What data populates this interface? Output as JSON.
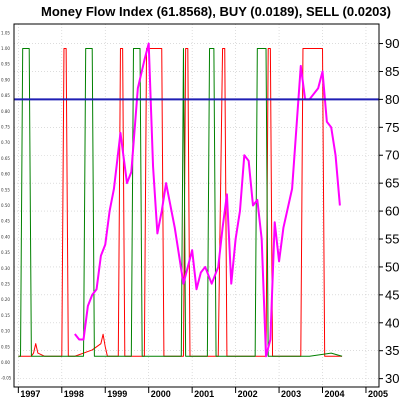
{
  "chart_data": {
    "type": "line",
    "title": "Money Flow Index (61.8568), BUY (0.0189), SELL (0.0203)",
    "x_ticks": [
      "1997",
      "1998",
      "1999",
      "2000",
      "2001",
      "2002",
      "2003",
      "2004",
      "2005"
    ],
    "xlim": [
      1996.9,
      2005.3
    ],
    "y_right": {
      "ticks": [
        30,
        35,
        40,
        45,
        50,
        55,
        60,
        65,
        70,
        75,
        80,
        85,
        90
      ],
      "ylim": [
        28.5,
        93.5
      ]
    },
    "y_left": {
      "ticks": [
        "-0.05",
        "0.00",
        "0.05",
        "0.10",
        "0.15",
        "0.20",
        "0.25",
        "0.30",
        "0.35",
        "0.40",
        "0.45",
        "0.50",
        "0.55",
        "0.60",
        "0.65",
        "0.70",
        "0.75",
        "0.80",
        "0.85",
        "0.90",
        "0.95",
        "1.00",
        "1.05"
      ],
      "ylim": [
        -0.078,
        1.078
      ]
    },
    "reference_line": {
      "value": 80,
      "axis": "right",
      "color": "#1f1fb4"
    },
    "series": [
      {
        "axis": "right",
        "color": "#ff00ff",
        "x": [
          1998.3,
          1998.4,
          1998.5,
          1998.6,
          1998.7,
          1998.8,
          1998.9,
          1999.0,
          1999.1,
          1999.2,
          1999.35,
          1999.5,
          1999.6,
          1999.75,
          1999.9,
          2000.0,
          2000.1,
          2000.2,
          2000.3,
          2000.4,
          2000.6,
          2000.8,
          2001.0,
          2001.1,
          2001.2,
          2001.3,
          2001.45,
          2001.6,
          2001.7,
          2001.8,
          2001.9,
          2002.0,
          2002.1,
          2002.2,
          2002.3,
          2002.4,
          2002.5,
          2002.6,
          2002.7,
          2002.8,
          2002.9,
          2003.0,
          2003.1,
          2003.3,
          2003.5,
          2003.6,
          2003.7,
          2003.8,
          2003.9,
          2004.0,
          2004.1,
          2004.2,
          2004.3,
          2004.4
        ],
        "values": [
          38,
          37,
          37,
          43,
          45,
          46,
          52,
          54,
          60,
          64,
          74,
          65,
          67,
          82,
          87,
          90,
          68,
          56,
          60,
          65,
          57,
          47,
          53,
          46,
          49,
          50,
          47,
          50,
          57,
          63,
          47,
          55,
          60,
          70,
          69,
          61,
          62,
          55,
          34,
          37,
          58,
          51,
          57,
          64,
          86,
          80,
          80,
          81,
          82,
          85,
          76,
          75,
          70,
          61
        ]
      },
      {
        "axis": "left",
        "color": "#ff0000",
        "x": [
          1997.0,
          1997.3,
          1997.35,
          1997.4,
          1997.45,
          1997.6,
          1998.0,
          1998.05,
          1998.1,
          1998.15,
          1998.3,
          1998.7,
          1998.9,
          1998.95,
          1999.0,
          1999.05,
          1999.3,
          1999.35,
          1999.4,
          1999.45,
          1999.6,
          1999.9,
          1999.95,
          2000.0,
          2000.3,
          2000.35,
          2000.8,
          2000.85,
          2000.9,
          2000.95,
          2001.2,
          2001.6,
          2001.7,
          2001.75,
          2001.8,
          2001.85,
          2002.0,
          2002.7,
          2002.75,
          2002.8,
          2002.85,
          2003.2,
          2003.5,
          2003.55,
          2003.95,
          2004.0,
          2004.05,
          2004.1,
          2004.15,
          2004.45
        ],
        "values": [
          0.02,
          0.02,
          0.03,
          0.06,
          0.03,
          0.02,
          0.02,
          1.0,
          1.0,
          0.02,
          0.02,
          0.04,
          0.06,
          0.09,
          0.05,
          0.02,
          0.02,
          1.0,
          1.0,
          0.02,
          0.02,
          0.02,
          1.0,
          1.0,
          1.0,
          0.02,
          0.02,
          1.0,
          1.0,
          0.02,
          0.02,
          0.02,
          1.0,
          1.0,
          0.02,
          0.02,
          0.02,
          0.02,
          1.0,
          1.0,
          0.02,
          0.02,
          0.02,
          1.0,
          1.0,
          1.0,
          0.02,
          0.02,
          0.02,
          0.02
        ]
      },
      {
        "axis": "left",
        "color": "#008000",
        "x": [
          1997.0,
          1997.05,
          1997.1,
          1997.25,
          1997.3,
          1997.35,
          1997.5,
          1997.6,
          1997.95,
          1998.0,
          1998.5,
          1998.55,
          1998.7,
          1998.75,
          1999.0,
          1999.3,
          1999.6,
          1999.65,
          1999.8,
          1999.85,
          2000.5,
          2000.75,
          2000.8,
          2000.85,
          2001.1,
          2001.35,
          2001.4,
          2001.5,
          2001.55,
          2001.9,
          2002.45,
          2002.5,
          2002.7,
          2002.75,
          2003.4,
          2003.7,
          2004.2,
          2004.45
        ],
        "values": [
          0.02,
          0.02,
          1.0,
          1.0,
          0.02,
          0.02,
          0.02,
          0.02,
          0.02,
          0.02,
          0.02,
          1.0,
          1.0,
          0.02,
          0.02,
          0.02,
          0.02,
          1.0,
          1.0,
          0.02,
          0.02,
          0.02,
          1.0,
          0.02,
          0.02,
          0.02,
          1.0,
          1.0,
          0.02,
          0.02,
          0.02,
          1.0,
          1.0,
          0.02,
          0.02,
          0.02,
          0.03,
          0.02
        ]
      }
    ],
    "grid": true
  }
}
